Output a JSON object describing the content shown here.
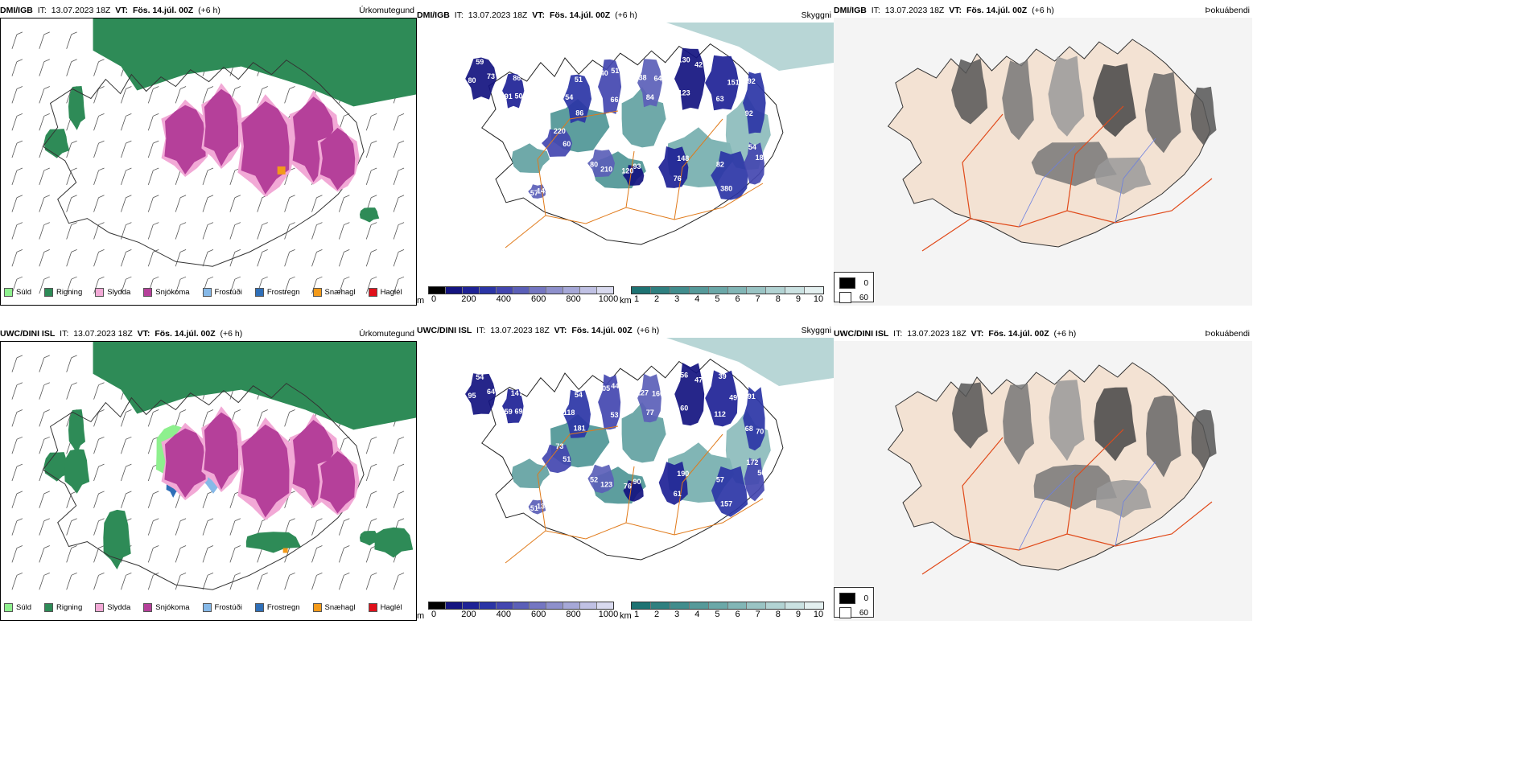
{
  "panels": [
    {
      "id": "top-left",
      "model": "DMI/IGB",
      "it_label": "IT:",
      "it": "13.07.2023 18Z",
      "vt_label": "VT:",
      "vt": "Fös. 14.júl. 00Z",
      "lead": "(+6 h)",
      "product": "Úrkomutegund"
    },
    {
      "id": "top-mid",
      "model": "DMI/IGB",
      "it_label": "IT:",
      "it": "13.07.2023 18Z",
      "vt_label": "VT:",
      "vt": "Fös. 14.júl. 00Z",
      "lead": "(+6 h)",
      "product": "Skyggni"
    },
    {
      "id": "top-right",
      "model": "DMI/IGB",
      "it_label": "IT:",
      "it": "13.07.2023 18Z",
      "vt_label": "VT:",
      "vt": "Fös. 14.júl. 00Z",
      "lead": "(+6 h)",
      "product": "Þokuábendi"
    },
    {
      "id": "bottom-left",
      "model": "UWC/DINI ISL",
      "it_label": "IT:",
      "it": "13.07.2023 18Z",
      "vt_label": "VT:",
      "vt": "Fös. 14.júl. 00Z",
      "lead": "(+6 h)",
      "product": "Úrkomutegund"
    },
    {
      "id": "bottom-mid",
      "model": "UWC/DINI ISL",
      "it_label": "IT:",
      "it": "13.07.2023 18Z",
      "vt_label": "VT:",
      "vt": "Fös. 14.júl. 00Z",
      "lead": "(+6 h)",
      "product": "Skyggni"
    },
    {
      "id": "bottom-right",
      "model": "UWC/DINI ISL",
      "it_label": "IT:",
      "it": "13.07.2023 18Z",
      "vt_label": "VT:",
      "vt": "Fös. 14.júl. 00Z",
      "lead": "(+6 h)",
      "product": "Þokuábendi"
    }
  ],
  "precip_legend": [
    {
      "label": "Súld",
      "color": "#8ef08e"
    },
    {
      "label": "Rigning",
      "color": "#2e8b57"
    },
    {
      "label": "Slydda",
      "color": "#f2a9d6"
    },
    {
      "label": "Snjókoma",
      "color": "#b5409a"
    },
    {
      "label": "Frostúði",
      "color": "#86b9e8"
    },
    {
      "label": "Frostregn",
      "color": "#2f6fb8"
    },
    {
      "label": "Snæhagl",
      "color": "#f39a1a"
    },
    {
      "label": "Haglél",
      "color": "#e0101a"
    }
  ],
  "ceiling_bar": {
    "unit": "m",
    "ticks": [
      "0",
      "200",
      "400",
      "600",
      "800",
      "1000"
    ],
    "colors": [
      "#000000",
      "#141480",
      "#1e2296",
      "#2b35a6",
      "#4346b0",
      "#5b5fb8",
      "#7476c2",
      "#8e90cc",
      "#a6a8d8",
      "#c0c1e4",
      "#d9daef"
    ]
  },
  "visibility_bar": {
    "unit": "km",
    "ticks": [
      "1",
      "2",
      "3",
      "4",
      "5",
      "6",
      "7",
      "8",
      "9",
      "10"
    ],
    "colors": [
      "#1e7373",
      "#2f8080",
      "#418d8d",
      "#569a9a",
      "#6ba8a8",
      "#82b6b6",
      "#9ac4c4",
      "#b2d3d3",
      "#cbe2e2",
      "#e4f0f0"
    ]
  },
  "fog_legend": [
    {
      "label": "0",
      "color": "#000000"
    },
    {
      "label": "60",
      "color": "#ffffff"
    }
  ],
  "top_ceiling_labels": [
    "73",
    "91",
    "51",
    "66",
    "38",
    "42",
    "63",
    "92",
    "60",
    "80",
    "93",
    "76",
    "82",
    "183",
    "57",
    "59",
    "50",
    "54",
    "51",
    "84",
    "130",
    "151",
    "92",
    "220",
    "210",
    "120",
    "148",
    "380",
    "54",
    "149",
    "80",
    "86",
    "86",
    "40",
    "64",
    "123"
  ],
  "bottom_ceiling_labels": [
    "64",
    "59",
    "54",
    "53",
    "127",
    "47",
    "112",
    "91",
    "51",
    "52",
    "90",
    "61",
    "57",
    "56",
    "51",
    "54",
    "69",
    "118",
    "44",
    "77",
    "56",
    "49",
    "68",
    "73",
    "123",
    "76",
    "190",
    "157",
    "172",
    "130",
    "95",
    "147",
    "181",
    "305",
    "160",
    "60",
    "39",
    "70"
  ]
}
